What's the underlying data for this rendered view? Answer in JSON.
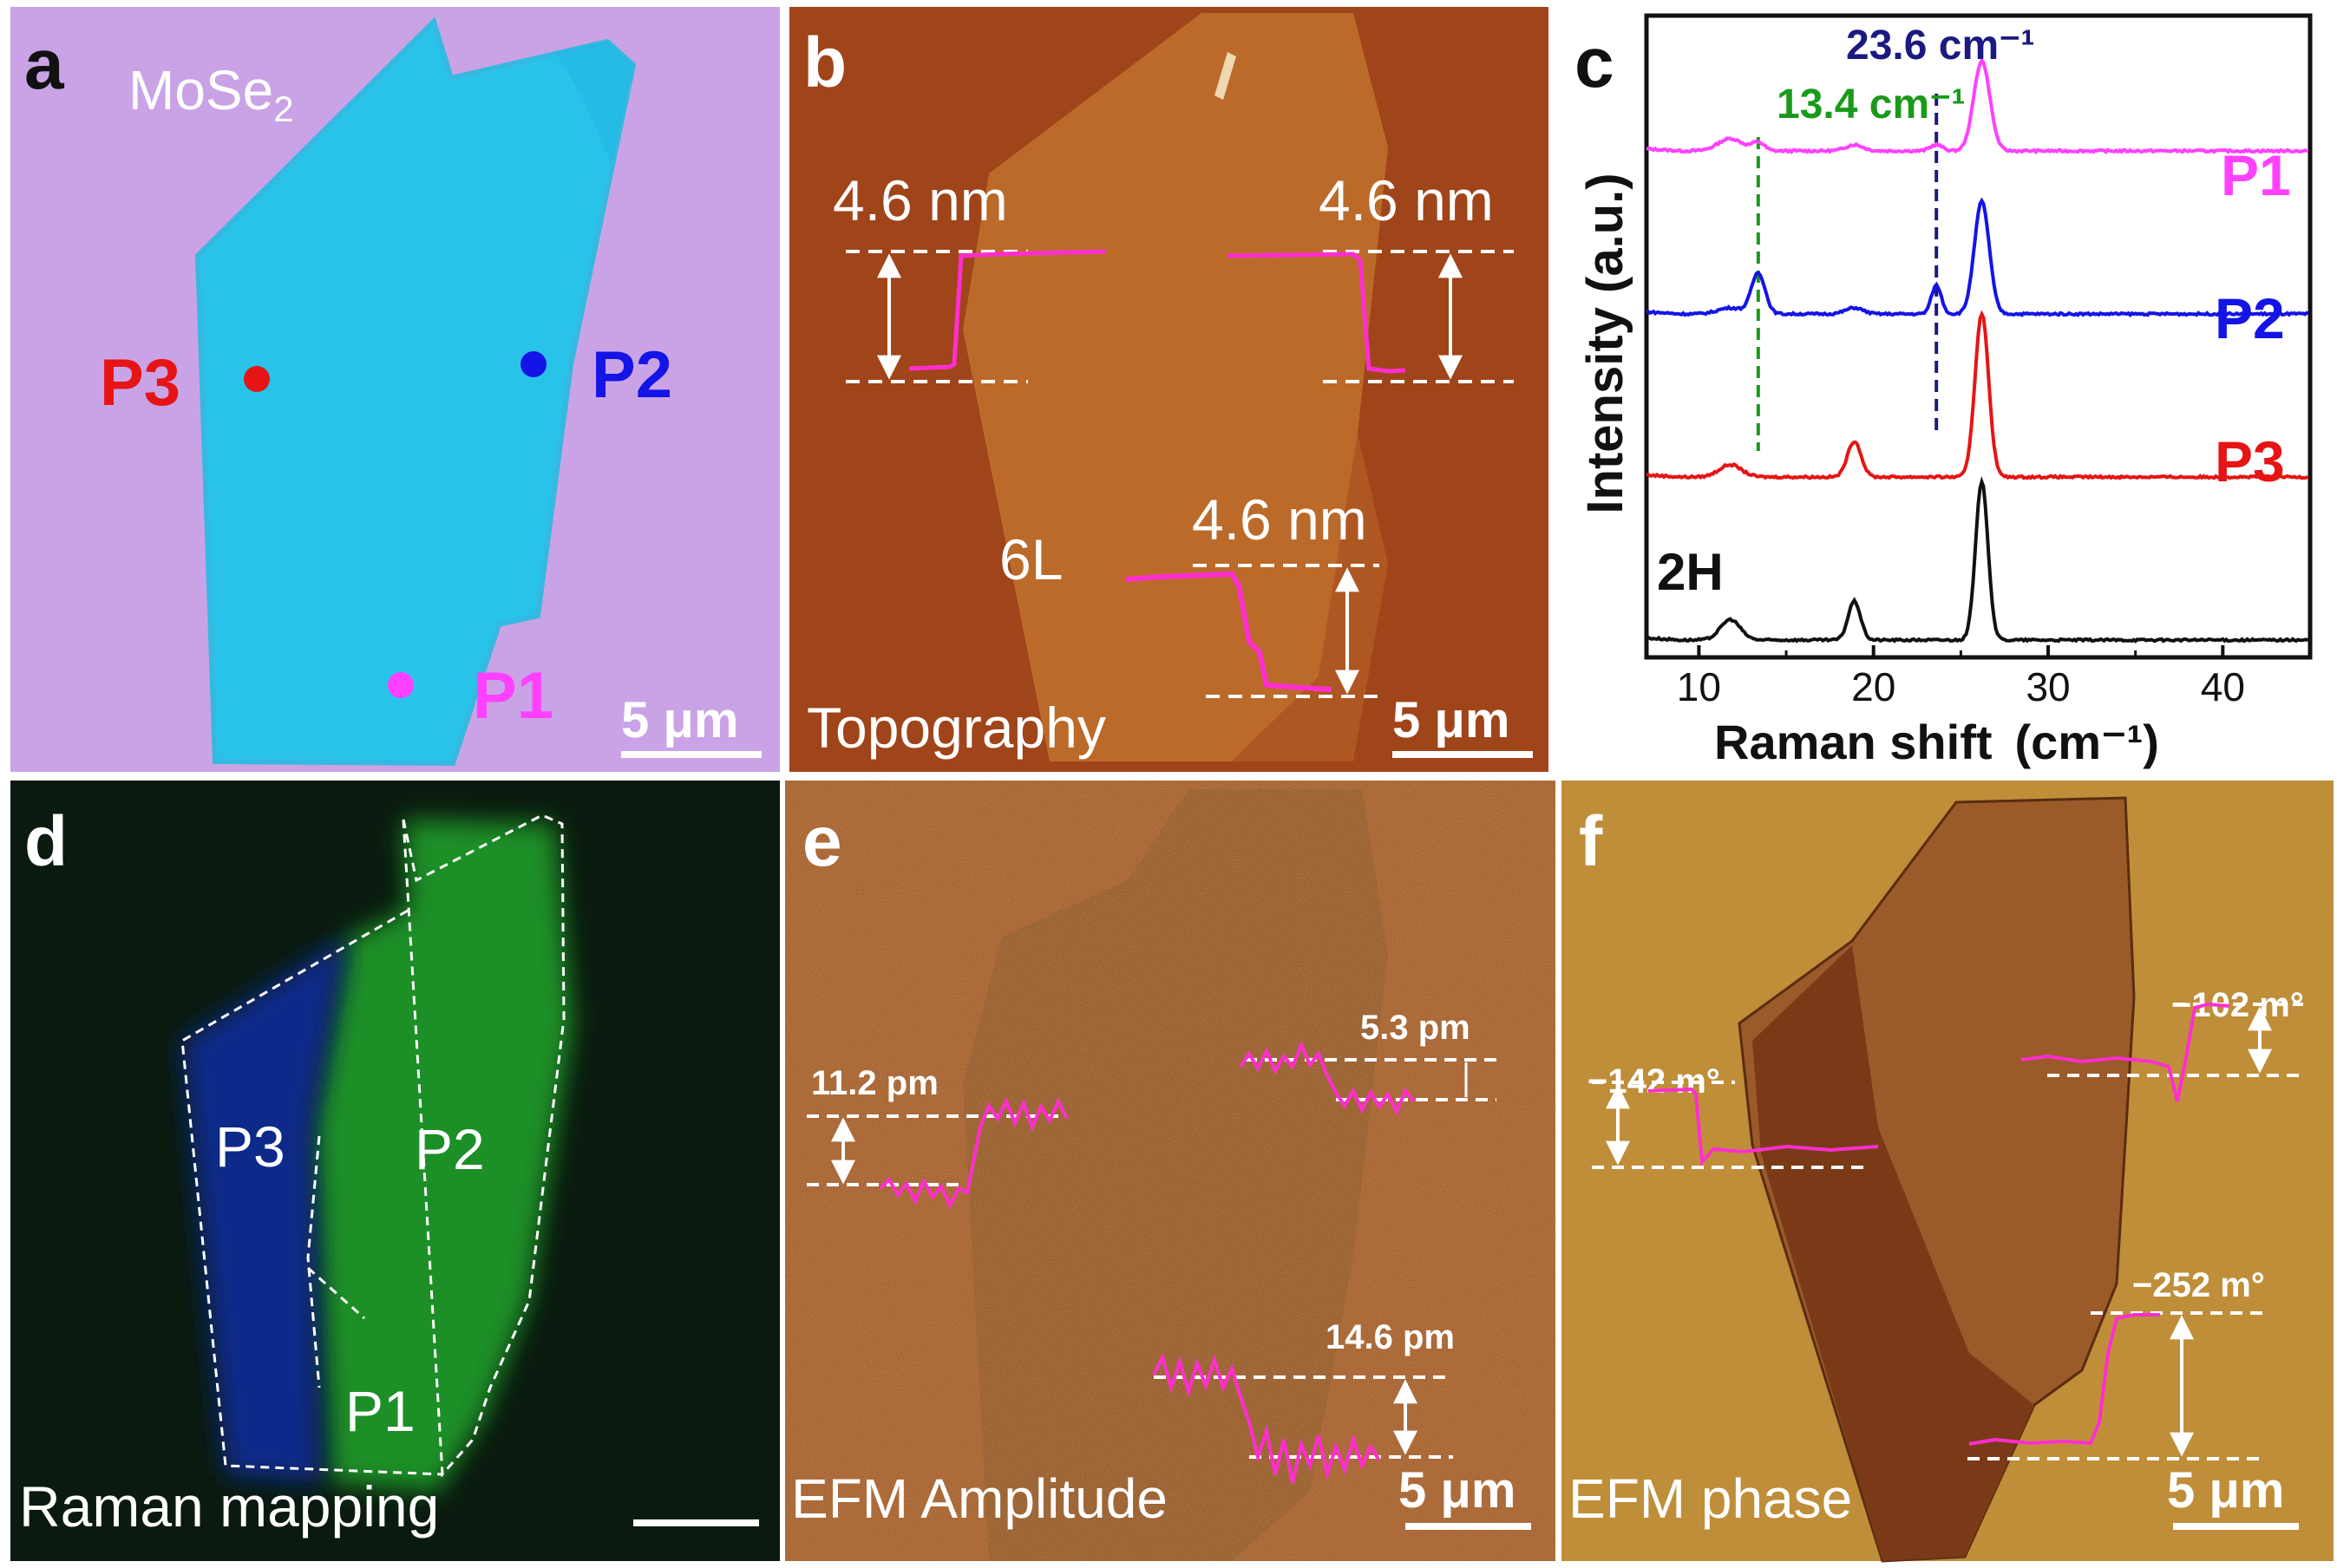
{
  "panels": {
    "a": {
      "letter": "a",
      "material_prefix": "MoSe",
      "material_subscript": "2",
      "points": [
        {
          "label": "P1",
          "color": "#ff40ff"
        },
        {
          "label": "P2",
          "color": "#1414e6"
        },
        {
          "label": "P3",
          "color": "#e61414"
        }
      ],
      "scalebar": "5 μm",
      "bg_color": "#c9a3e6",
      "flake_color": "#29c3ea"
    },
    "b": {
      "letter": "b",
      "steps": [
        "4.6 nm",
        "4.6 nm",
        "4.6 nm"
      ],
      "layer_label": "6L",
      "caption": "Topography",
      "scalebar": "5 μm"
    },
    "c": {
      "letter": "c",
      "ann_green": "13.4 cm⁻¹",
      "ann_blue": "23.6 cm⁻¹"
    },
    "d": {
      "letter": "d",
      "regions": [
        "P3",
        "P2",
        "P1"
      ],
      "caption": "Raman mapping"
    },
    "e": {
      "letter": "e",
      "steps": [
        "11.2 pm",
        "5.3 pm",
        "14.6 pm"
      ],
      "caption": "EFM Amplitude",
      "scalebar": "5 μm"
    },
    "f": {
      "letter": "f",
      "steps": [
        "−142 m°",
        "−102 m°",
        "−252 m°"
      ],
      "caption": "EFM phase",
      "scalebar": "5 μm"
    }
  },
  "chart_data": {
    "type": "line",
    "title": "",
    "xlabel_prefix": "Raman shift",
    "xlabel_unit": "(cm⁻¹)",
    "ylabel": "Intensity (a.u.)",
    "xlim": [
      7,
      45
    ],
    "xticks": [
      10,
      20,
      30,
      40
    ],
    "peak_markers": [
      {
        "x": 13.4,
        "color": "#1a9a1a"
      },
      {
        "x": 23.6,
        "color": "#1a1a80"
      }
    ],
    "series": [
      {
        "name": "P1",
        "color": "#ff40ff",
        "label_color": "#ff40ff",
        "offset": 3.0,
        "peaks": [
          [
            11.8,
            0.12,
            1.0
          ],
          [
            13.4,
            0.08,
            0.5
          ],
          [
            18.9,
            0.06,
            0.7
          ],
          [
            23.6,
            0.06,
            0.5
          ],
          [
            26.2,
            0.88,
            0.65
          ]
        ]
      },
      {
        "name": "P2",
        "color": "#1414e6",
        "label_color": "#1414e6",
        "offset": 2.0,
        "peaks": [
          [
            11.8,
            0.06,
            1.0
          ],
          [
            13.4,
            0.4,
            0.55
          ],
          [
            18.9,
            0.06,
            0.7
          ],
          [
            23.6,
            0.28,
            0.4
          ],
          [
            26.2,
            1.1,
            0.6
          ]
        ]
      },
      {
        "name": "P3",
        "color": "#e61414",
        "label_color": "#e61414",
        "offset": 1.0,
        "peaks": [
          [
            11.8,
            0.12,
            0.9
          ],
          [
            18.9,
            0.35,
            0.55
          ],
          [
            26.2,
            1.6,
            0.55
          ]
        ]
      },
      {
        "name": "2H",
        "color": "#111111",
        "label_color": "#111111",
        "offset": 0.0,
        "peaks": [
          [
            11.8,
            0.2,
            0.8
          ],
          [
            18.9,
            0.38,
            0.5
          ],
          [
            26.2,
            1.55,
            0.5
          ]
        ]
      }
    ]
  }
}
